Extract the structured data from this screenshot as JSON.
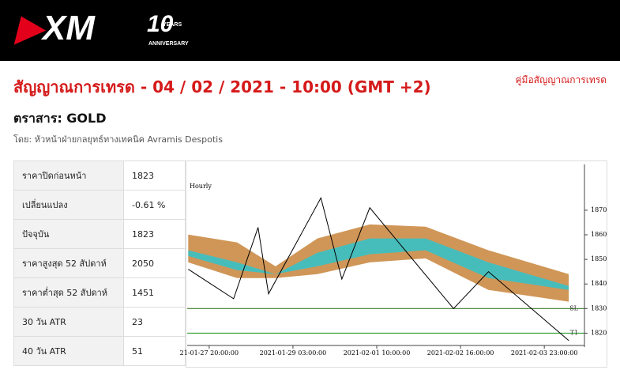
{
  "header": {
    "logo": "XM",
    "badge": "10",
    "badge_top": "YEARS",
    "badge_bottom": "ANNIVERSARY"
  },
  "title": "สัญญาณการเทรด - 04 / 02 / 2021 - 10:00 (GMT +2)",
  "guide_link": "คู่มือสัญญาณการเทรด",
  "instrument": "ตราสาร: GOLD",
  "author": "โดย: หัวหน้าฝ่ายกลยุทธ์ทางเทคนิค Avramis Despotis",
  "table": {
    "rows": [
      [
        "ราคาปิดก่อนหน้า",
        "1823"
      ],
      [
        "เปลี่ยนแปลง",
        "-0.61 %"
      ],
      [
        "ปัจจุบัน",
        "1823"
      ],
      [
        "ราคาสูงสุด 52 สัปดาห์",
        "2050"
      ],
      [
        "ราคาต่ำสุด 52 สัปดาห์",
        "1451"
      ],
      [
        "30 วัน ATR",
        "23"
      ],
      [
        "40 วัน ATR",
        "51"
      ]
    ]
  },
  "chart_data": {
    "type": "line",
    "title": "Hourly",
    "x": [
      -6,
      7,
      14,
      17,
      32,
      38,
      46,
      70,
      80,
      103
    ],
    "series": [
      {
        "color": "#000000",
        "values": [
          1846,
          1834,
          1863,
          1836,
          1875,
          1842,
          1871,
          1830,
          1845,
          1817
        ]
      }
    ],
    "bands": {
      "x": [
        -6,
        8,
        19,
        31,
        46,
        62,
        80,
        103
      ],
      "areas": [
        {
          "color": "#c8843a",
          "upper": [
            1860.1,
            1856.9,
            1847.2,
            1858.5,
            1864.2,
            1863.3,
            1853.7,
            1844
          ],
          "lower": [
            1848.8,
            1842.4,
            1842.4,
            1844,
            1848.8,
            1850.4,
            1837.6,
            1832.8
          ]
        },
        {
          "color": "#2fc4cc",
          "upper": [
            1853.7,
            1848.8,
            1844,
            1852.7,
            1858.5,
            1858.5,
            1848.8,
            1839.2
          ],
          "lower": [
            1851.4,
            1845.6,
            1844,
            1847.2,
            1852.1,
            1853.7,
            1842.4,
            1837.6
          ]
        }
      ]
    },
    "levels": [
      {
        "value": 1830,
        "label": "SL",
        "color": "#3a7d2a"
      },
      {
        "value": 1820,
        "label": "T1",
        "color": "#2e9e2e"
      }
    ],
    "xlim": [
      -6.3,
      107.5
    ],
    "ylim": [
      1815,
      1887
    ],
    "xticks": [
      {
        "value": 0,
        "label": "21-01-27 20:00:00"
      },
      {
        "value": 24,
        "label": "2021-01-29 03:00:00"
      },
      {
        "value": 48,
        "label": "2021-02-01 10:00:00"
      },
      {
        "value": 72,
        "label": "2021-02-02 16:00:00"
      },
      {
        "value": 96,
        "label": "2021-02-03 23:00:00"
      }
    ],
    "yticks": [
      1820,
      1830,
      1840,
      1850,
      1860,
      1870
    ]
  }
}
